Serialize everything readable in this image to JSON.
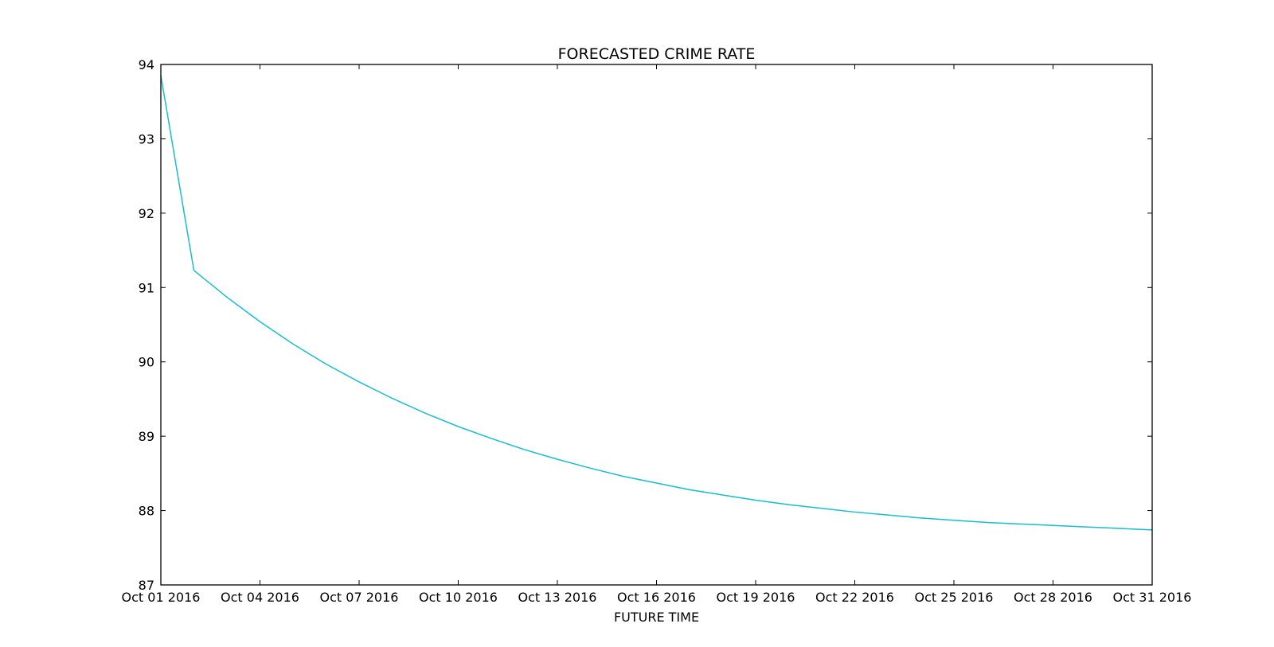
{
  "chart_data": {
    "type": "line",
    "title": "FORECASTED CRIME RATE",
    "xlabel": "FUTURE TIME",
    "ylabel": "",
    "x_axis_type": "date",
    "x": [
      "2016-10-01",
      "2016-10-02",
      "2016-10-03",
      "2016-10-04",
      "2016-10-05",
      "2016-10-06",
      "2016-10-07",
      "2016-10-08",
      "2016-10-09",
      "2016-10-10",
      "2016-10-11",
      "2016-10-12",
      "2016-10-13",
      "2016-10-14",
      "2016-10-15",
      "2016-10-16",
      "2016-10-17",
      "2016-10-18",
      "2016-10-19",
      "2016-10-20",
      "2016-10-21",
      "2016-10-22",
      "2016-10-23",
      "2016-10-24",
      "2016-10-25",
      "2016-10-26",
      "2016-10-27",
      "2016-10-28",
      "2016-10-29",
      "2016-10-30",
      "2016-10-31"
    ],
    "series": [
      {
        "color": "#17becf",
        "values": [
          93.85,
          91.23,
          90.87,
          90.54,
          90.24,
          89.97,
          89.73,
          89.51,
          89.31,
          89.13,
          88.97,
          88.82,
          88.69,
          88.57,
          88.46,
          88.37,
          88.28,
          88.21,
          88.14,
          88.08,
          88.03,
          87.98,
          87.94,
          87.9,
          87.87,
          87.84,
          87.82,
          87.8,
          87.78,
          87.76,
          87.74
        ]
      }
    ],
    "xlim": [
      "2016-10-01",
      "2016-10-31"
    ],
    "ylim": [
      87,
      94
    ],
    "x_ticks": [
      "Oct 01 2016",
      "Oct 04 2016",
      "Oct 07 2016",
      "Oct 10 2016",
      "Oct 13 2016",
      "Oct 16 2016",
      "Oct 19 2016",
      "Oct 22 2016",
      "Oct 25 2016",
      "Oct 28 2016",
      "Oct 31 2016"
    ],
    "y_ticks": [
      "87",
      "88",
      "89",
      "90",
      "91",
      "92",
      "93",
      "94"
    ],
    "grid": false,
    "legend": "none"
  }
}
